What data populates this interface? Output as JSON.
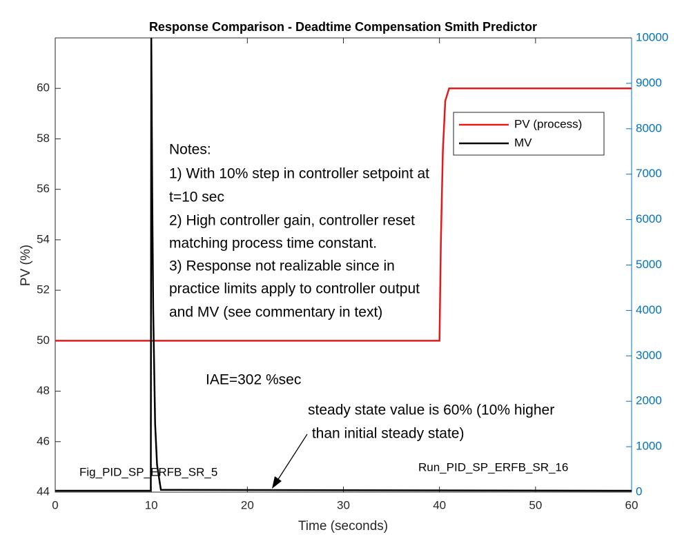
{
  "chart_data": {
    "type": "line",
    "title": "Response Comparison - Deadtime Compensation Smith Predictor",
    "x_label": "Time (seconds)",
    "y_label": "PV (%)",
    "xlim": [
      0,
      60
    ],
    "xticks": [
      0,
      10,
      20,
      30,
      40,
      50,
      60
    ],
    "ylim": [
      44,
      62
    ],
    "yticks": [
      44,
      46,
      48,
      50,
      52,
      54,
      56,
      58,
      60
    ],
    "y2lim": [
      0,
      10000
    ],
    "y2ticks": [
      0,
      1000,
      2000,
      3000,
      4000,
      5000,
      6000,
      7000,
      8000,
      9000,
      10000
    ],
    "y2_color": "#0072bd",
    "legend": "upper right",
    "series": [
      {
        "name": "PV (process)",
        "color": "#e31a1c",
        "x": [
          0,
          40,
          40.15,
          40.35,
          40.6,
          41,
          60
        ],
        "values": [
          50,
          50,
          54,
          57.5,
          59.5,
          60,
          60
        ]
      },
      {
        "name": "MV",
        "color": "#000000",
        "axis": "y2",
        "x": [
          0,
          9.95,
          10,
          10.1,
          10.2,
          10.4,
          10.6,
          11,
          60
        ],
        "values": [
          30,
          30,
          10000,
          6500,
          4000,
          1500,
          600,
          50,
          30
        ]
      }
    ],
    "annotations": [
      "Notes:",
      "1) With 10% step in controller setpoint at",
      "t=10 sec",
      "2) High controller gain, controller reset",
      "matching process time constant.",
      "3) Response not realizable since in",
      "practice limits apply to controller output",
      "and MV (see commentary in text)",
      "IAE=302 %sec",
      "steady state value is 60% (10% higher",
      " than initial steady state)",
      "Fig_PID_SP_ERFB_SR_5",
      "Run_PID_SP_ERFB_SR_16"
    ]
  }
}
